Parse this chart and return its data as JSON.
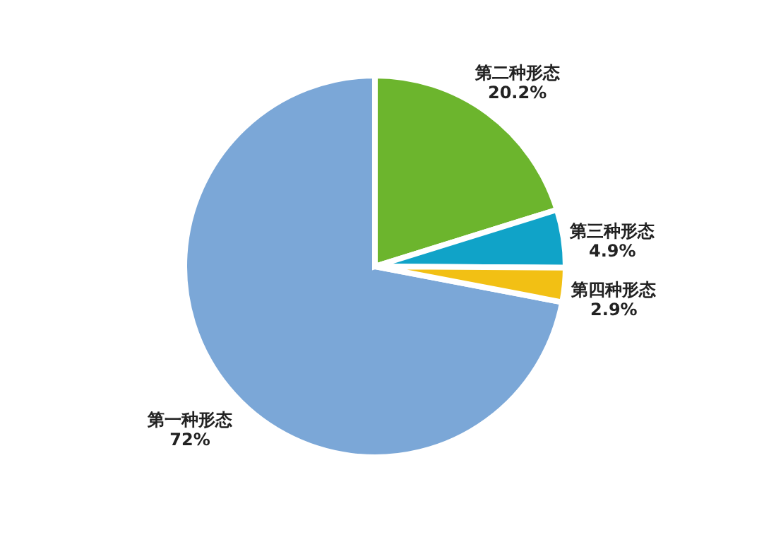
{
  "chart_data": {
    "type": "pie",
    "categories": [
      "第一种形态",
      "第二种形态",
      "第三种形态",
      "第四种形态"
    ],
    "values": [
      72,
      20.2,
      4.9,
      2.9
    ],
    "colors": [
      "#7ba7d7",
      "#6cb52d",
      "#10a3c8",
      "#f2c014"
    ],
    "value_labels": [
      "72%",
      "20.2%",
      "4.9%",
      "2.9%"
    ],
    "legend": false
  }
}
